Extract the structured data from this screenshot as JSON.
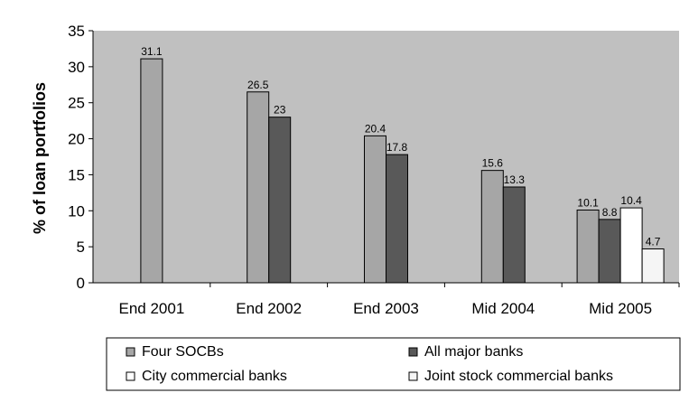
{
  "chart_data": {
    "type": "bar",
    "title": "",
    "xlabel": "",
    "ylabel": "% of loan portfolios",
    "ylim": [
      0,
      35
    ],
    "yticks": [
      0,
      5,
      10,
      15,
      20,
      25,
      30,
      35
    ],
    "grid": false,
    "legend_position": "bottom",
    "categories": [
      "End 2001",
      "End 2002",
      "End 2003",
      "Mid 2004",
      "Mid 2005"
    ],
    "series": [
      {
        "name": "Four SOCBs",
        "color": "#a6a6a6",
        "values": [
          31.1,
          26.5,
          20.4,
          15.6,
          10.1
        ],
        "labels": [
          "31.1",
          "26.5",
          "20.4",
          "15.6",
          "10.1"
        ]
      },
      {
        "name": "All major banks",
        "color": "#595959",
        "values": [
          null,
          23,
          17.8,
          13.3,
          8.8
        ],
        "labels": [
          "",
          "23",
          "17.8",
          "13.3",
          "8.8"
        ]
      },
      {
        "name": "City commercial banks",
        "color": "#ffffff",
        "values": [
          null,
          null,
          null,
          null,
          10.4
        ],
        "labels": [
          "",
          "",
          "",
          "",
          "10.4"
        ]
      },
      {
        "name": "Joint stock commercial banks",
        "color": "#f5f5f5",
        "values": [
          null,
          null,
          null,
          null,
          4.7
        ],
        "labels": [
          "",
          "",
          "",
          "",
          "4.7"
        ]
      }
    ],
    "plot_background": "#c0c0c0"
  }
}
